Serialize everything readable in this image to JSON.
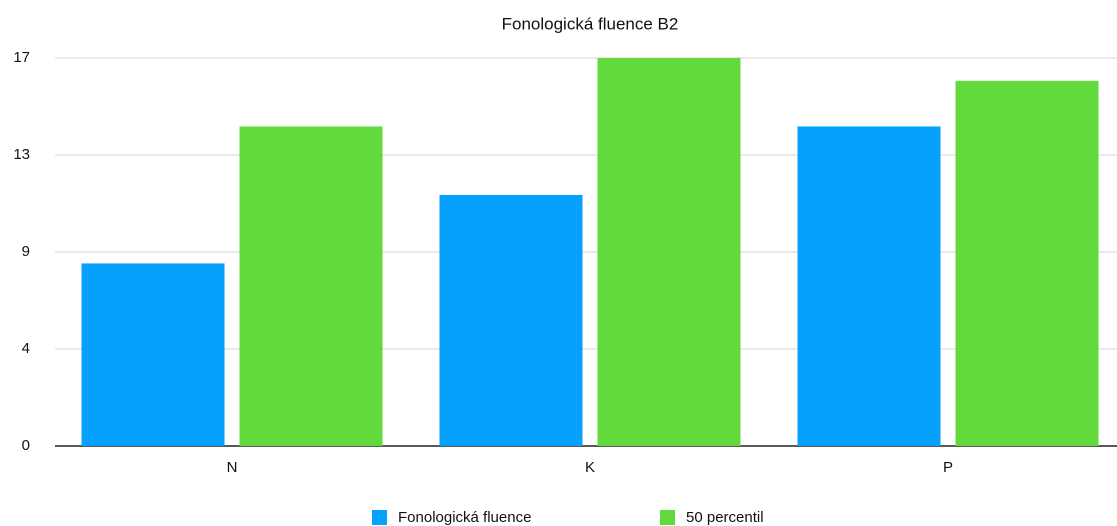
{
  "chart_data": {
    "type": "bar",
    "title": "Fonologická fluence B2",
    "categories": [
      "N",
      "K",
      "P"
    ],
    "series": [
      {
        "name": "Fonologická fluence",
        "color": "#05a1fc",
        "values": [
          8,
          11,
          14
        ]
      },
      {
        "name": "50 percentil",
        "color": "#62da3b",
        "values": [
          14,
          17,
          16
        ]
      }
    ],
    "ylim": [
      0,
      17
    ],
    "yticks": [
      0,
      {
        "value": 4.25,
        "label": "4"
      },
      {
        "value": 8.5,
        "label": "9"
      },
      {
        "value": 12.75,
        "label": "13"
      },
      17
    ],
    "grid": true,
    "legend": "bottom"
  }
}
